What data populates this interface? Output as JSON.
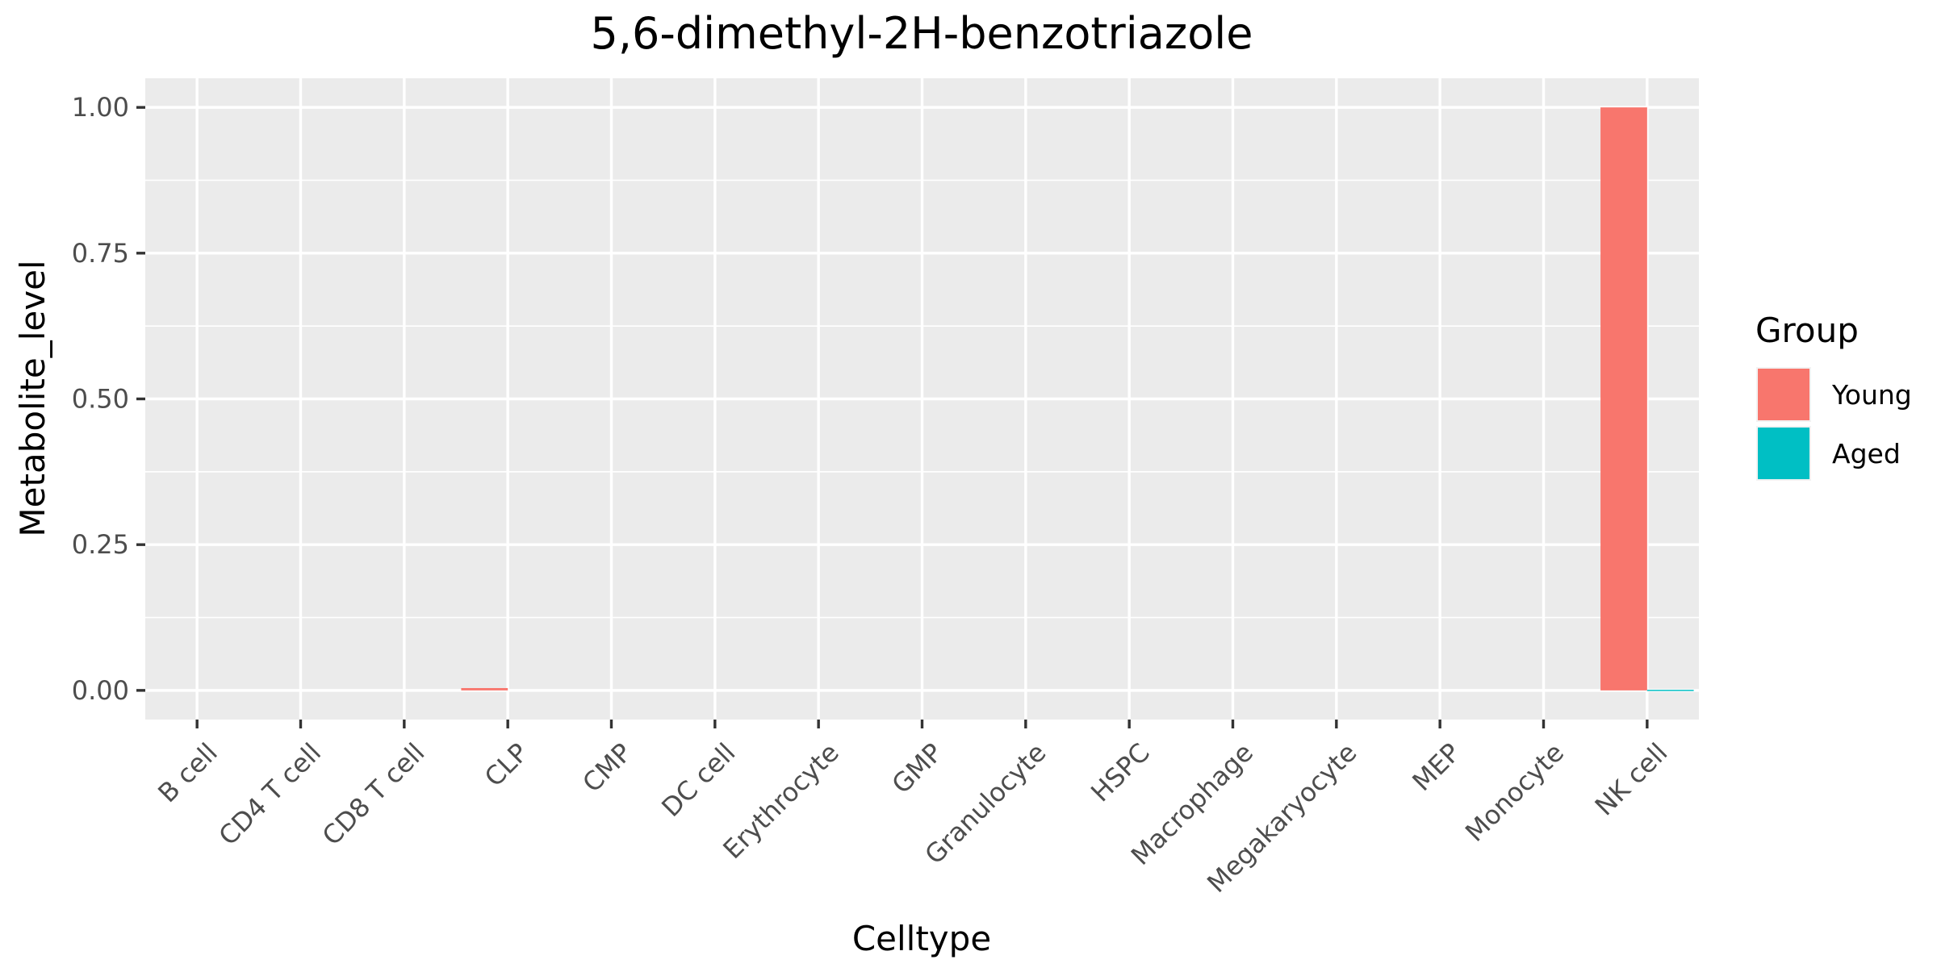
{
  "chart_data": {
    "type": "bar",
    "title": "5,6-dimethyl-2H-benzotriazole",
    "xlabel": "Celltype",
    "ylabel": "Metabolite_level",
    "categories": [
      "B cell",
      "CD4 T cell",
      "CD8 T cell",
      "CLP",
      "CMP",
      "DC cell",
      "Erythrocyte",
      "GMP",
      "Granulocyte",
      "HSPC",
      "Macrophage",
      "Megakaryocyte",
      "MEP",
      "Monocyte",
      "NK cell"
    ],
    "series": [
      {
        "name": "Young",
        "color": "#F8766D",
        "values": [
          0,
          0,
          0,
          0.004,
          0,
          0,
          0,
          0,
          0,
          0,
          0,
          0,
          0,
          0,
          1.0
        ]
      },
      {
        "name": "Aged",
        "color": "#00BFC4",
        "values": [
          0,
          0,
          0,
          0,
          0,
          0,
          0,
          0,
          0,
          0,
          0,
          0,
          0,
          0,
          0.001
        ]
      }
    ],
    "ylim": [
      -0.05,
      1.05
    ],
    "yticks": [
      0.0,
      0.25,
      0.5,
      0.75,
      1.0
    ],
    "ytick_labels": [
      "0.00",
      "0.25",
      "0.50",
      "0.75",
      "1.00"
    ],
    "grid": true,
    "legend": {
      "title": "Group",
      "position": "right"
    }
  }
}
